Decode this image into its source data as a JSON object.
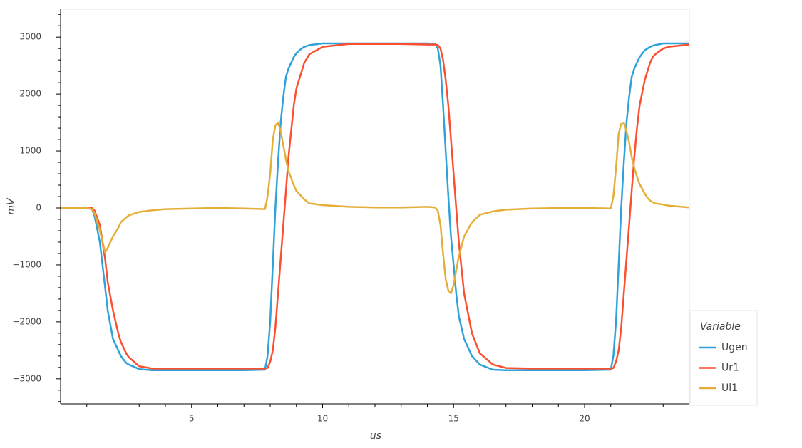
{
  "chart_data": {
    "type": "line",
    "xlabel": "us",
    "ylabel": "mV",
    "legend_title": "Variable",
    "legend_position": "bottom-right",
    "xlim": [
      0,
      24
    ],
    "ylim": [
      -3440,
      3490
    ],
    "xticks": [
      5,
      10,
      15,
      20
    ],
    "xminorticks": [
      1,
      2,
      3,
      4,
      6,
      7,
      8,
      9,
      11,
      12,
      13,
      14,
      16,
      17,
      18,
      19,
      21,
      22,
      23
    ],
    "yticks": [
      {
        "value": -3000,
        "label": "−3000"
      },
      {
        "value": -2000,
        "label": "−2000"
      },
      {
        "value": -1000,
        "label": "−1000"
      },
      0,
      1000,
      2000,
      3000
    ],
    "yminorticks": [
      -3400,
      -3200,
      -2800,
      -2600,
      -2400,
      -2200,
      -1800,
      -1600,
      -1400,
      -1200,
      -800,
      -600,
      -400,
      -200,
      200,
      400,
      600,
      800,
      1200,
      1400,
      1600,
      1800,
      2200,
      2400,
      2600,
      2800,
      3200,
      3400
    ],
    "x": [
      0,
      1,
      1.2,
      1.3,
      1.5,
      1.7,
      1.8,
      2.0,
      2.2,
      2.3,
      2.5,
      2.6,
      3.0,
      3.5,
      4,
      5,
      6,
      7,
      7.8,
      7.9,
      8.0,
      8.1,
      8.2,
      8.3,
      8.4,
      8.5,
      8.6,
      8.7,
      8.9,
      9.0,
      9.2,
      9.3,
      9.5,
      10,
      11,
      12,
      13,
      14,
      14.3,
      14.4,
      14.5,
      14.6,
      14.7,
      14.8,
      14.9,
      15.0,
      15.1,
      15.2,
      15.4,
      15.7,
      16.0,
      16.5,
      17,
      18,
      19,
      20,
      21.0,
      21.1,
      21.2,
      21.3,
      21.4,
      21.5,
      21.6,
      21.7,
      21.8,
      21.9,
      22.0,
      22.1,
      22.3,
      22.4,
      22.5,
      22.6,
      22.7,
      23,
      23.2,
      24
    ],
    "series": [
      {
        "name": "Ugen",
        "color": "#30a2da",
        "values": [
          0,
          0,
          -20,
          -150,
          -600,
          -1400,
          -1800,
          -2300,
          -2500,
          -2600,
          -2720,
          -2750,
          -2830,
          -2850,
          -2850,
          -2850,
          -2850,
          -2850,
          -2840,
          -2600,
          -2000,
          -1000,
          0,
          800,
          1500,
          1950,
          2300,
          2450,
          2650,
          2720,
          2800,
          2830,
          2860,
          2890,
          2890,
          2890,
          2890,
          2890,
          2880,
          2800,
          2500,
          1800,
          1000,
          200,
          -500,
          -1000,
          -1500,
          -1900,
          -2300,
          -2600,
          -2750,
          -2840,
          -2850,
          -2850,
          -2850,
          -2850,
          -2840,
          -2600,
          -2000,
          -1000,
          0,
          800,
          1500,
          1950,
          2300,
          2450,
          2550,
          2650,
          2770,
          2800,
          2830,
          2850,
          2860,
          2890,
          2890,
          2890
        ]
      },
      {
        "name": "Ur1",
        "color": "#fc4f30",
        "values": [
          0,
          0,
          0,
          -50,
          -300,
          -900,
          -1300,
          -1800,
          -2200,
          -2350,
          -2550,
          -2620,
          -2780,
          -2820,
          -2820,
          -2820,
          -2820,
          -2820,
          -2820,
          -2810,
          -2700,
          -2500,
          -2100,
          -1500,
          -900,
          -300,
          300,
          900,
          1800,
          2100,
          2400,
          2550,
          2700,
          2830,
          2880,
          2880,
          2880,
          2870,
          2870,
          2860,
          2800,
          2600,
          2250,
          1800,
          1200,
          600,
          0,
          -600,
          -1500,
          -2200,
          -2550,
          -2750,
          -2810,
          -2820,
          -2820,
          -2820,
          -2820,
          -2810,
          -2700,
          -2500,
          -2100,
          -1500,
          -900,
          -300,
          300,
          900,
          1400,
          1800,
          2250,
          2400,
          2550,
          2650,
          2700,
          2800,
          2830,
          2870
        ]
      },
      {
        "name": "Ul1",
        "color": "#e5ae38",
        "values": [
          0,
          0,
          -20,
          -100,
          -400,
          -780,
          -700,
          -500,
          -350,
          -250,
          -170,
          -130,
          -70,
          -40,
          -20,
          -10,
          0,
          -10,
          -20,
          200,
          600,
          1200,
          1450,
          1500,
          1350,
          1100,
          850,
          650,
          400,
          300,
          200,
          150,
          80,
          50,
          20,
          10,
          10,
          20,
          10,
          -50,
          -300,
          -800,
          -1250,
          -1450,
          -1500,
          -1350,
          -1100,
          -850,
          -500,
          -250,
          -120,
          -60,
          -30,
          -10,
          0,
          0,
          -10,
          200,
          700,
          1300,
          1480,
          1500,
          1350,
          1150,
          900,
          700,
          550,
          420,
          250,
          180,
          130,
          100,
          80,
          60,
          40,
          10
        ]
      }
    ]
  }
}
